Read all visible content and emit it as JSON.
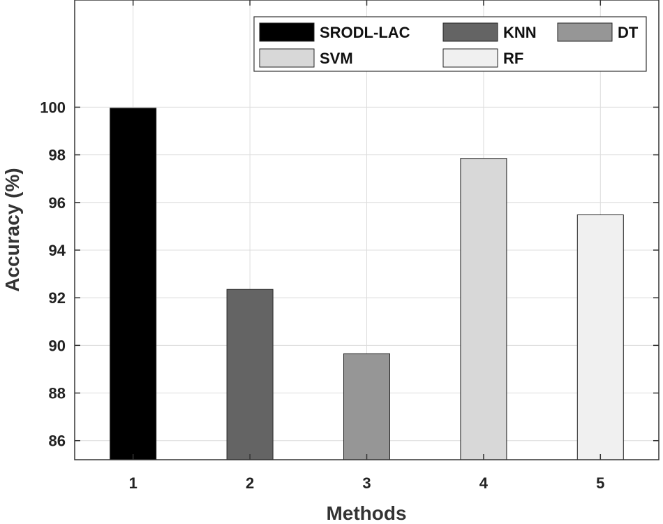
{
  "chart_data": {
    "type": "bar",
    "categories": [
      "1",
      "2",
      "3",
      "4",
      "5"
    ],
    "series": [
      {
        "name": "SRODL-LAC",
        "values": [
          99.96,
          null,
          null,
          null,
          null
        ],
        "color": "#000000"
      },
      {
        "name": "KNN",
        "values": [
          null,
          92.35,
          null,
          null,
          null
        ],
        "color": "#646464"
      },
      {
        "name": "DT",
        "values": [
          null,
          null,
          89.65,
          null,
          null
        ],
        "color": "#969696"
      },
      {
        "name": "SVM",
        "values": [
          null,
          null,
          null,
          97.85,
          null
        ],
        "color": "#d8d8d8"
      },
      {
        "name": "RF",
        "values": [
          null,
          null,
          null,
          null,
          95.48
        ],
        "color": "#f0f0f0"
      }
    ],
    "xlabel": "Methods",
    "ylabel": "Accuracy (%)",
    "ylim": [
      85.2,
      104.5
    ],
    "yticks": [
      86,
      88,
      90,
      92,
      94,
      96,
      98,
      100
    ],
    "grid": true,
    "legend_position": "top-right"
  }
}
